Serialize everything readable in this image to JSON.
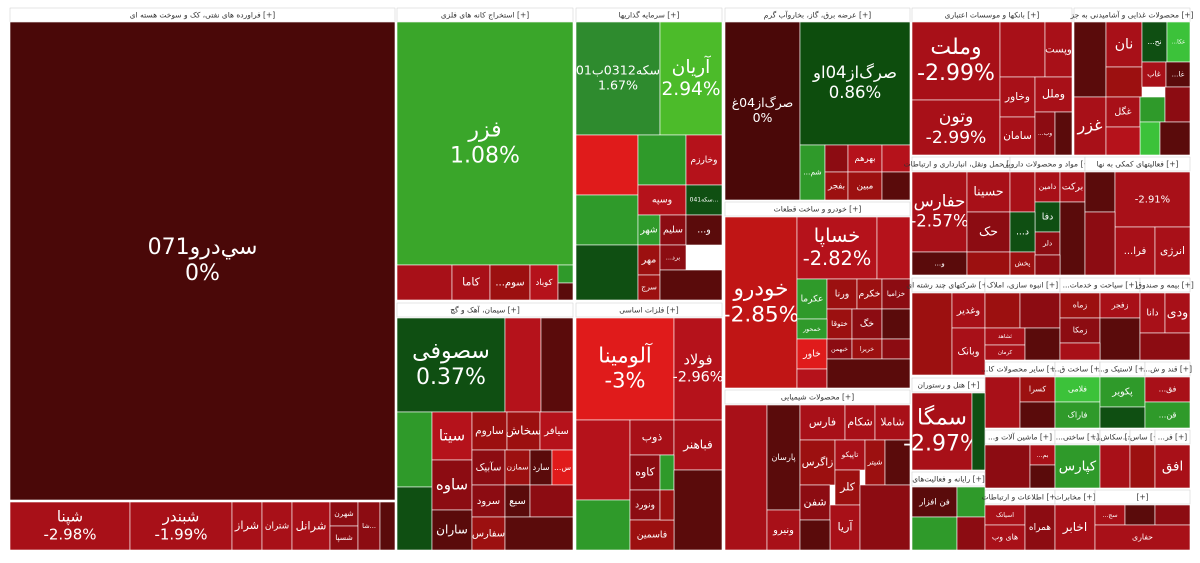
{
  "chart_data": {
    "type": "treemap",
    "groups": [
      {
        "title": "فراورده های نفتی، کک و سوخت هسته ای [+]",
        "tiles": [
          {
            "label": "سي‌درو071",
            "value": 0,
            "value_label": "0%",
            "color": "#4a0808"
          },
          {
            "label": "شپنا",
            "value": -2.98,
            "value_label": "-2.98%",
            "color": "#a81018"
          },
          {
            "label": "شبندر",
            "value": -1.99,
            "value_label": "-1.99%",
            "color": "#a81018"
          },
          {
            "label": "شراز",
            "color": "#a81018"
          },
          {
            "label": "شتران",
            "color": "#a81018"
          },
          {
            "label": "شرانل",
            "color": "#a81018"
          },
          {
            "label": "شهرن",
            "color": "#8c0c12"
          },
          {
            "label": "شسپا",
            "color": "#8c0c12"
          },
          {
            "label": "شا...",
            "color": "#8c0c12"
          },
          {
            "color": "#5a0b0b"
          }
        ]
      },
      {
        "title": "استخراج کانه های فلزی [+]",
        "tiles": [
          {
            "label": "فزر",
            "value": 1.08,
            "value_label": "1.08%",
            "color": "#3aa62a"
          },
          {
            "color": "#a81018"
          },
          {
            "label": "کاما",
            "color": "#a81018"
          },
          {
            "label": "...سوم",
            "color": "#9c1010"
          },
          {
            "label": "کوباد",
            "color": "#b5121b"
          },
          {
            "color": "#2f9a2a"
          },
          {
            "color": "#5a0b0b"
          }
        ]
      },
      {
        "title": "سیمان، آهک و گچ [+]",
        "tiles": [
          {
            "label": "سصوفی",
            "value": 0.37,
            "value_label": "0.37%",
            "color": "#0f4f12"
          },
          {
            "color": "#b5121b"
          },
          {
            "color": "#5a0b0b"
          },
          {
            "color": "#2f9a2a"
          },
          {
            "color": "#0f4f12"
          },
          {
            "label": "سیتا",
            "color": "#b5121b"
          },
          {
            "label": "ساوه",
            "color": "#8c0c12"
          },
          {
            "label": "ساران",
            "color": "#5a0b0b"
          },
          {
            "label": "ساروم",
            "color": "#9c1010"
          },
          {
            "label": "سخاش",
            "color": "#9c1010"
          },
          {
            "label": "سیافر",
            "color": "#b5121b"
          },
          {
            "label": "سآبیک",
            "color": "#8c0c12"
          },
          {
            "label": "سمازن",
            "color": "#9c1010"
          },
          {
            "label": "سارد",
            "color": "#5a0b0b"
          },
          {
            "label": "...س",
            "color": "#e01b1b"
          },
          {
            "label": "سرود",
            "color": "#8c0c12"
          },
          {
            "label": "سفارس",
            "color": "#9c1010"
          },
          {
            "label": "سبع",
            "color": "#5a0b0b"
          },
          {
            "color": "#8c0c12"
          },
          {
            "color": "#5a0b0b"
          }
        ]
      },
      {
        "title": "سرمایه گذاریها [+]",
        "tiles": [
          {
            "label": "سکه0312ب01",
            "value": 1.67,
            "value_label": "1.67%",
            "color": "#2e8b2e"
          },
          {
            "label": "آریان",
            "value": 2.94,
            "value_label": "2.94%",
            "color": "#4cbb2a"
          },
          {
            "color": "#e01b1b"
          },
          {
            "color": "#2f9a2a"
          },
          {
            "color": "#0f4f12"
          },
          {
            "color": "#2f9a2a"
          },
          {
            "label": "وخارزم",
            "color": "#b5121b"
          },
          {
            "label": "وسپه",
            "color": "#b5121b"
          },
          {
            "label": "سکه041...",
            "color": "#0f4f12"
          },
          {
            "label": "شهر",
            "color": "#2f9a2a"
          },
          {
            "label": "سلیم",
            "color": "#8c0c12"
          },
          {
            "label": "...و",
            "color": "#5a0b0b"
          },
          {
            "label": "مهر",
            "color": "#9c1010"
          },
          {
            "label": "...برد",
            "color": "#8c0c12"
          },
          {
            "label": "سرج",
            "color": "#9c1010"
          },
          {
            "color": "#5a0b0b"
          }
        ]
      },
      {
        "title": "فلزات اساسی [+]",
        "tiles": [
          {
            "label": "آلومینا",
            "value": -3,
            "value_label": "-3%",
            "color": "#e01b1b"
          },
          {
            "label": "فولاد",
            "value": -2.96,
            "value_label": "-2.96%",
            "color": "#b5121b"
          },
          {
            "color": "#b5121b"
          },
          {
            "color": "#2f9a2a"
          },
          {
            "label": "ذوب",
            "color": "#a81018"
          },
          {
            "label": "فباهنر",
            "color": "#a81018"
          },
          {
            "label": "کاوه",
            "color": "#8c0c12"
          },
          {
            "color": "#2f9a2a"
          },
          {
            "color": "#5a0b0b"
          },
          {
            "label": "ونورد",
            "color": "#8c0c12"
          },
          {
            "label": "فاسمین",
            "color": "#9c1010"
          },
          {
            "color": "#9c1010"
          }
        ]
      },
      {
        "title": "عرضه برق، گاز، بخاروآب گرم [+]",
        "tiles": [
          {
            "label": "صرگ‌از04غ",
            "value": 0,
            "value_label": "0%",
            "color": "#4a0808"
          },
          {
            "label": "صرگ‌از04او",
            "value": 0.86,
            "value_label": "0.86%",
            "color": "#0d4d0d"
          },
          {
            "label": "...شم",
            "color": "#2f9a2a"
          },
          {
            "color": "#8c0c12"
          },
          {
            "label": "بفجر",
            "color": "#9c1010"
          },
          {
            "label": "بهرهم",
            "color": "#b5121b"
          },
          {
            "label": "مبین",
            "color": "#9c1010"
          },
          {
            "color": "#b5121b"
          },
          {
            "color": "#5a0b0b"
          }
        ]
      },
      {
        "title": "خودرو و ساخت قطعات [+]",
        "tiles": [
          {
            "label": "خودرو",
            "value": -2.85,
            "value_label": "-2.85%",
            "color": "#c01515"
          },
          {
            "label": "خساپا",
            "value": -2.82,
            "value_label": "-2.82%",
            "color": "#b5121b"
          },
          {
            "color": "#b5121b"
          },
          {
            "label": "عکرما",
            "color": "#2f9a2a"
          },
          {
            "label": "ورنا",
            "color": "#9c1010"
          },
          {
            "label": "خکرم",
            "color": "#9c1010"
          },
          {
            "label": "خزامیا",
            "color": "#8c0c12"
          },
          {
            "label": "ختوقا",
            "color": "#9c1010"
          },
          {
            "label": "خگ",
            "color": "#8c0c12"
          },
          {
            "color": "#5a0b0b"
          },
          {
            "label": "خمحور",
            "color": "#2f9a2a"
          },
          {
            "label": "خاور",
            "color": "#e01b1b"
          },
          {
            "color": "#b5121b"
          },
          {
            "label": "خبهمن",
            "color": "#8c0c12"
          },
          {
            "label": "خریرا",
            "color": "#9c1010"
          },
          {
            "color": "#8c0c12"
          },
          {
            "color": "#5a0b0b"
          }
        ]
      },
      {
        "title": "محصولات شیمیایی [+]",
        "tiles": [
          {
            "color": "#a81018"
          },
          {
            "label": "پارسان",
            "color": "#5a0b0b"
          },
          {
            "label": "ونیرو",
            "color": "#a81018"
          },
          {
            "label": "فارس",
            "color": "#a81018"
          },
          {
            "label": "شکام",
            "color": "#a81018"
          },
          {
            "label": "شاملا",
            "color": "#a81018"
          },
          {
            "label": "زاگرس",
            "color": "#9c1010"
          },
          {
            "label": "تاپیکو",
            "color": "#a81018"
          },
          {
            "label": "شیتر",
            "color": "#9c1010"
          },
          {
            "color": "#5a0b0b"
          },
          {
            "label": "شفن",
            "color": "#8c0c12"
          },
          {
            "label": "کلر",
            "color": "#9c1010"
          },
          {
            "label": "آریا",
            "color": "#a81018"
          },
          {
            "color": "#5a0b0b"
          },
          {
            "color": "#8c0c12"
          }
        ]
      },
      {
        "title": "بانکها و موسسات اعتباری [+]",
        "tiles": [
          {
            "label": "وملت",
            "value": -2.99,
            "value_label": "-2.99%",
            "color": "#a81018"
          },
          {
            "label": "وتون",
            "value": -2.99,
            "value_label": "-2.99%",
            "color": "#a81018"
          },
          {
            "color": "#a81018"
          },
          {
            "label": "وپست",
            "color": "#a81018"
          },
          {
            "label": "وخاور",
            "color": "#a81018"
          },
          {
            "label": "وملل",
            "color": "#a81018"
          },
          {
            "label": "سامان",
            "color": "#a81018"
          },
          {
            "label": "...وب",
            "color": "#8c0c12"
          },
          {
            "color": "#5a0b0b"
          }
        ]
      },
      {
        "title": "محصولات غذایی و آشامیدنی به جز [+]",
        "tiles": [
          {
            "color": "#5a0b0b"
          },
          {
            "label": "نان",
            "color": "#a81018"
          },
          {
            "label": "...نح",
            "color": "#0f4f12"
          },
          {
            "label": "...عکا",
            "color": "#3cc23a"
          },
          {
            "color": "#9c1010"
          },
          {
            "label": "غاب",
            "color": "#a81018"
          },
          {
            "label": "...غا",
            "color": "#5a0b0b"
          },
          {
            "label": "غزر",
            "color": "#a81018"
          },
          {
            "label": "غگل",
            "color": "#a81018"
          },
          {
            "color": "#2f9a2a"
          },
          {
            "color": "#8c0c12"
          },
          {
            "color": "#3cc23a"
          },
          {
            "color": "#b5121b"
          },
          {
            "color": "#5a0b0b"
          }
        ]
      },
      {
        "title": "حمل ونقل، انبارداری و ارتباطات [+]",
        "tiles": [
          {
            "label": "حفارس",
            "value": -2.57,
            "value_label": "-2.57%",
            "color": "#a81018"
          },
          {
            "label": "حسینا",
            "color": "#a81018"
          },
          {
            "label": "حک",
            "color": "#8c0c12"
          },
          {
            "label": "...و",
            "color": "#5a0b0b"
          },
          {
            "color": "#9c1010"
          }
        ]
      },
      {
        "title": "مواد و محصولات دارویی [+]",
        "tiles": [
          {
            "color": "#a81018"
          },
          {
            "label": "دامین",
            "color": "#a81018"
          },
          {
            "label": "برکت",
            "color": "#a81018"
          },
          {
            "label": "دفا",
            "color": "#0f4f12"
          },
          {
            "label": "دلر",
            "color": "#8c0c12"
          },
          {
            "label": "...د",
            "color": "#0f4f12"
          },
          {
            "label": "پخش",
            "color": "#9c1010"
          },
          {
            "color": "#5a0b0b"
          },
          {
            "color": "#8c0c12"
          }
        ]
      },
      {
        "title": "فعالیتهای کمکی به نها [+]",
        "tiles": [
          {
            "color": "#5a0b0b"
          },
          {
            "value": -2.91,
            "value_label": "-2.91%",
            "color": "#a81018"
          },
          {
            "label": "...فرا",
            "color": "#a81018"
          },
          {
            "label": "انرژی",
            "color": "#a81018"
          },
          {
            "color": "#8c0c12"
          }
        ]
      },
      {
        "title": "شرکتهای چند رشته ای [+]",
        "tiles": [
          {
            "color": "#9c1010"
          },
          {
            "label": "وغدیر",
            "color": "#a81018"
          },
          {
            "label": "وبانک",
            "color": "#a81018"
          }
        ]
      },
      {
        "title": "انبوه سازی، املاک [+]",
        "tiles": [
          {
            "color": "#9c1010"
          },
          {
            "color": "#8c0c12"
          },
          {
            "label": "ثشاهد",
            "color": "#a81018"
          },
          {
            "label": "کرمان",
            "color": "#a81018"
          },
          {
            "color": "#5a0b0b"
          }
        ]
      },
      {
        "title": "...سیاحت و خدمات [+]",
        "tiles": [
          {
            "label": "زماه",
            "color": "#9c1010"
          },
          {
            "label": "زفجر",
            "color": "#a81018"
          },
          {
            "label": "زمکا",
            "color": "#8c0c12"
          },
          {
            "color": "#5a0b0b"
          },
          {
            "color": "#a81018"
          }
        ]
      },
      {
        "title": "بیمه و صندوق [+]",
        "tiles": [
          {
            "label": "دانا",
            "color": "#a81018"
          },
          {
            "label": "ودی",
            "color": "#a81018"
          },
          {
            "color": "#8c0c12"
          }
        ]
      },
      {
        "title": "...سایر محصولات کا [+]",
        "tiles": [
          {
            "color": "#a81018"
          },
          {
            "label": "کسرا",
            "color": "#9c1010"
          },
          {
            "color": "#5a0b0b"
          }
        ]
      },
      {
        "title": "...ساخت ق [+]",
        "tiles": [
          {
            "label": "فلامی",
            "color": "#3cc23a"
          },
          {
            "label": "فاراک",
            "color": "#2f9a2a"
          }
        ]
      },
      {
        "title": "...لاستیک و [+]",
        "tiles": [
          {
            "label": "پکویر",
            "color": "#2f9a2a"
          },
          {
            "color": "#0f4f12"
          }
        ]
      },
      {
        "title": "...قند و ش [+]",
        "tiles": [
          {
            "label": "...فق",
            "color": "#a81018"
          },
          {
            "label": "...قن",
            "color": "#2f9a2a"
          }
        ]
      },
      {
        "title": "هتل و رستوران [+]",
        "tiles": [
          {
            "label": "سمگا",
            "value": -2.97,
            "value_label": "-2.97%",
            "color": "#a81018"
          },
          {
            "color": "#0f4f12"
          }
        ]
      },
      {
        "title": "...ماشین آلات و [+]",
        "tiles": [
          {
            "color": "#8c0c12"
          },
          {
            "label": "...بم",
            "color": "#a81018"
          },
          {
            "color": "#5a0b0b"
          }
        ]
      },
      {
        "title": "...ساختی [+]",
        "tiles": [
          {
            "label": "کپارس",
            "color": "#2f9a2a"
          }
        ]
      },
      {
        "title": "...سکاش [+]",
        "tiles": [
          {
            "color": "#a81018"
          }
        ]
      },
      {
        "title": "...ساس [+]",
        "tiles": [
          {
            "color": "#9c1010"
          }
        ]
      },
      {
        "title": "...فر [+]",
        "tiles": [
          {
            "label": "افق",
            "color": "#a81018"
          }
        ]
      },
      {
        "title": "رایانه و فعالیت‌های [+]",
        "tiles": [
          {
            "label": "فن افزار",
            "color": "#5a0b0b"
          },
          {
            "color": "#2f9a2a"
          },
          {
            "color": "#2f9a2a"
          },
          {
            "color": "#8c0c12"
          }
        ]
      },
      {
        "title": "اطلاعات و ارتباطات [+]",
        "tiles": [
          {
            "label": "اسیاتک",
            "color": "#a81018"
          },
          {
            "label": "های وب",
            "color": "#a81018"
          },
          {
            "label": "همراه",
            "color": "#8c0c12"
          }
        ]
      },
      {
        "title": "مخابرات [+]",
        "tiles": [
          {
            "label": "اخابر",
            "color": "#a81018"
          }
        ]
      },
      {
        "title": "[+]",
        "tiles": [
          {
            "label": "...سج",
            "color": "#a81018"
          },
          {
            "color": "#5a0b0b"
          },
          {
            "color": "#8c0c12"
          },
          {
            "label": "حفاری",
            "color": "#a81018"
          }
        ]
      }
    ]
  }
}
